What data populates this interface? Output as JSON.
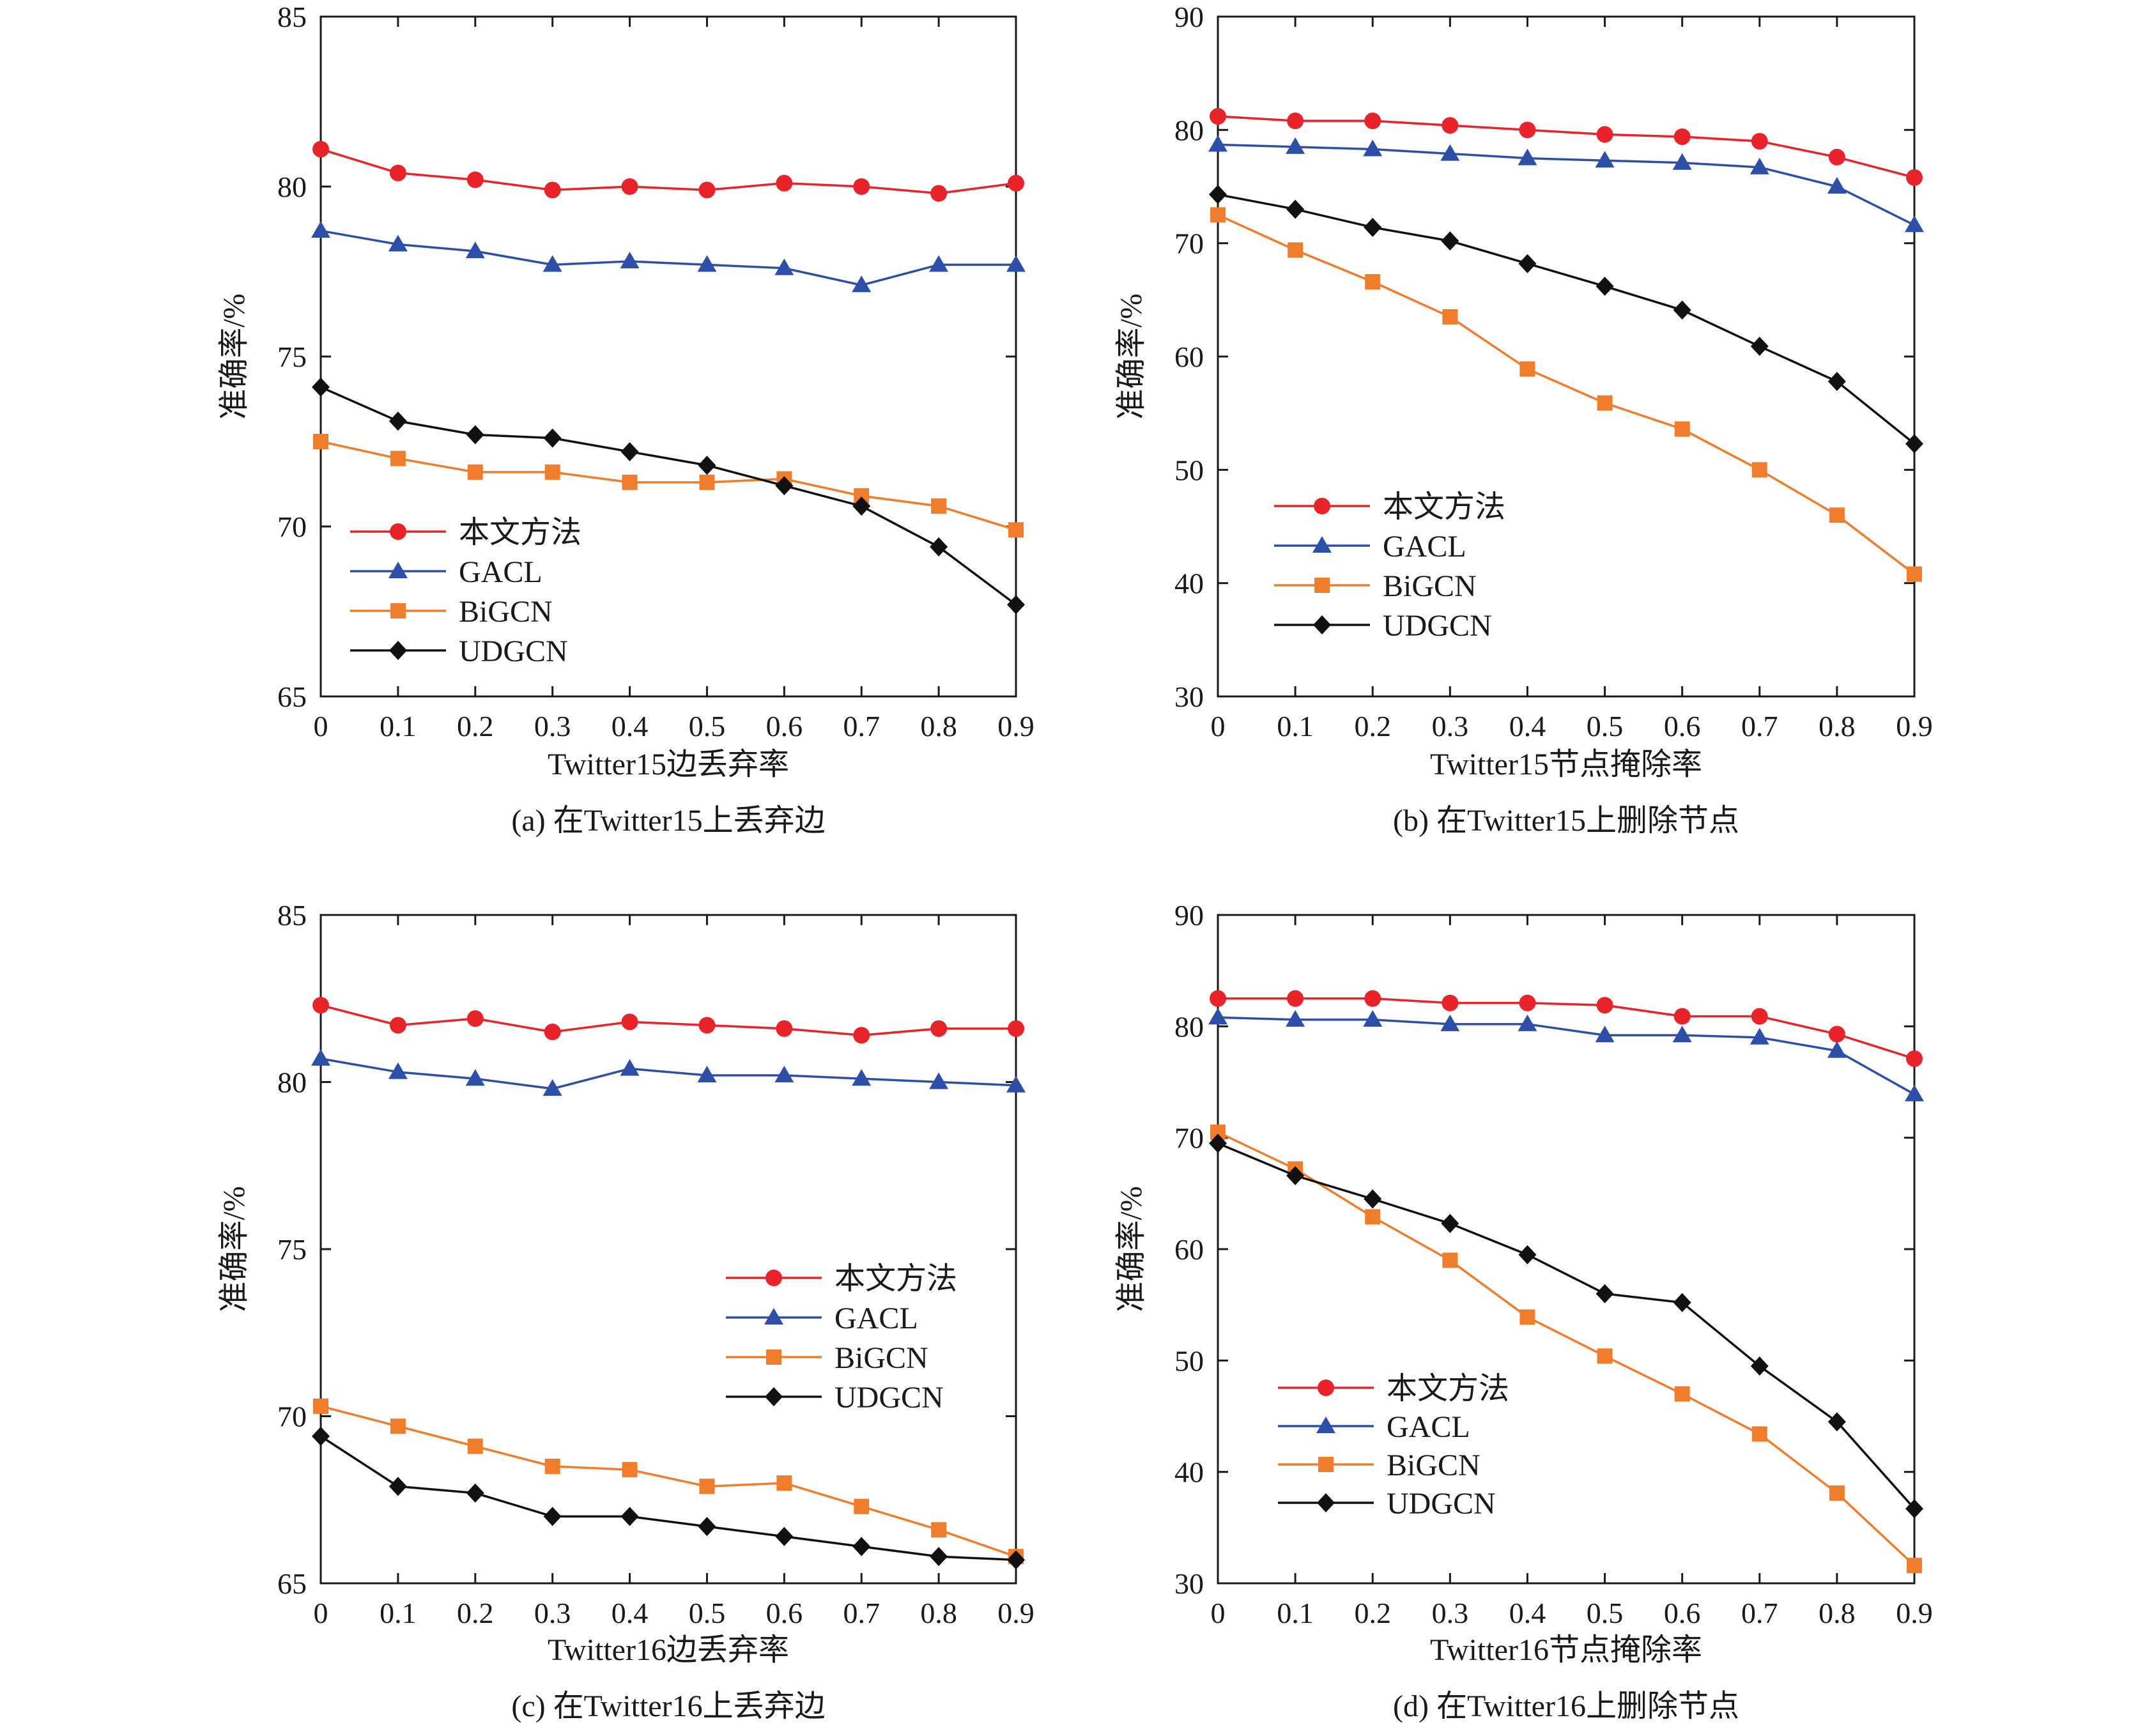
{
  "chart_data": [
    {
      "type": "line",
      "caption": "(a)  在Twitter15上丢弃边",
      "xlabel": "Twitter15边丢弃率",
      "ylabel": "准确率/%",
      "x": [
        0,
        0.1,
        0.2,
        0.3,
        0.4,
        0.5,
        0.6,
        0.7,
        0.8,
        0.9
      ],
      "x_tick_labels": [
        "0",
        "0.1",
        "0.2",
        "0.3",
        "0.4",
        "0.5",
        "0.6",
        "0.7",
        "0.8",
        "0.9"
      ],
      "ylim": [
        65,
        85
      ],
      "yticks": [
        65,
        70,
        75,
        80,
        85
      ],
      "grid": false,
      "legend_position": "lower-left",
      "series": [
        {
          "name": "本文方法",
          "color": "#e8232a",
          "marker": "circle",
          "values": [
            81.1,
            80.4,
            80.2,
            79.9,
            80.0,
            79.9,
            80.1,
            80.0,
            79.8,
            80.1
          ]
        },
        {
          "name": "GACL",
          "color": "#2e4fa8",
          "marker": "triangle",
          "values": [
            78.7,
            78.3,
            78.1,
            77.7,
            77.8,
            77.7,
            77.6,
            77.1,
            77.7,
            77.7
          ]
        },
        {
          "name": "BiGCN",
          "color": "#f07d2b",
          "marker": "square",
          "values": [
            72.5,
            72.0,
            71.6,
            71.6,
            71.3,
            71.3,
            71.4,
            70.9,
            70.6,
            69.9
          ]
        },
        {
          "name": "UDGCN",
          "color": "#111111",
          "marker": "diamond",
          "values": [
            74.1,
            73.1,
            72.7,
            72.6,
            72.2,
            71.8,
            71.2,
            70.6,
            69.4,
            67.7
          ]
        }
      ]
    },
    {
      "type": "line",
      "caption": "(b)  在Twitter15上删除节点",
      "xlabel": "Twitter15节点掩除率",
      "ylabel": "准确率/%",
      "x": [
        0,
        0.1,
        0.2,
        0.3,
        0.4,
        0.5,
        0.6,
        0.7,
        0.8,
        0.9
      ],
      "x_tick_labels": [
        "0",
        "0.1",
        "0.2",
        "0.3",
        "0.4",
        "0.5",
        "0.6",
        "0.7",
        "0.8",
        "0.9"
      ],
      "ylim": [
        30,
        90
      ],
      "yticks": [
        30,
        40,
        50,
        60,
        70,
        80,
        90
      ],
      "grid": false,
      "legend_position": "lower-left",
      "series": [
        {
          "name": "本文方法",
          "color": "#e8232a",
          "marker": "circle",
          "values": [
            81.2,
            80.8,
            80.8,
            80.4,
            80.0,
            79.6,
            79.4,
            79.0,
            77.6,
            75.8
          ]
        },
        {
          "name": "GACL",
          "color": "#2e4fa8",
          "marker": "triangle",
          "values": [
            78.7,
            78.5,
            78.3,
            77.9,
            77.5,
            77.3,
            77.1,
            76.7,
            75.0,
            71.6
          ]
        },
        {
          "name": "BiGCN",
          "color": "#f07d2b",
          "marker": "square",
          "values": [
            72.5,
            69.4,
            66.6,
            63.5,
            58.9,
            55.9,
            53.6,
            50.0,
            46.0,
            40.8
          ]
        },
        {
          "name": "UDGCN",
          "color": "#111111",
          "marker": "diamond",
          "values": [
            74.3,
            73.0,
            71.4,
            70.2,
            68.2,
            66.2,
            64.1,
            60.9,
            57.8,
            52.3
          ]
        }
      ]
    },
    {
      "type": "line",
      "caption": "(c)  在Twitter16上丢弃边",
      "xlabel": "Twitter16边丢弃率",
      "ylabel": "准确率/%",
      "x": [
        0,
        0.1,
        0.2,
        0.3,
        0.4,
        0.5,
        0.6,
        0.7,
        0.8,
        0.9
      ],
      "x_tick_labels": [
        "0",
        "0.1",
        "0.2",
        "0.3",
        "0.4",
        "0.5",
        "0.6",
        "0.7",
        "0.8",
        "0.9"
      ],
      "ylim": [
        65,
        85
      ],
      "yticks": [
        65,
        70,
        75,
        80,
        85
      ],
      "grid": false,
      "legend_position": "center-right",
      "series": [
        {
          "name": "本文方法",
          "color": "#e8232a",
          "marker": "circle",
          "values": [
            82.3,
            81.7,
            81.9,
            81.5,
            81.8,
            81.7,
            81.6,
            81.4,
            81.6,
            81.6
          ]
        },
        {
          "name": "GACL",
          "color": "#2e4fa8",
          "marker": "triangle",
          "values": [
            80.7,
            80.3,
            80.1,
            79.8,
            80.4,
            80.2,
            80.2,
            80.1,
            80.0,
            79.9
          ]
        },
        {
          "name": "BiGCN",
          "color": "#f07d2b",
          "marker": "square",
          "values": [
            70.3,
            69.7,
            69.1,
            68.5,
            68.4,
            67.9,
            68.0,
            67.3,
            66.6,
            65.8
          ]
        },
        {
          "name": "UDGCN",
          "color": "#111111",
          "marker": "diamond",
          "values": [
            69.4,
            67.9,
            67.7,
            67.0,
            67.0,
            66.7,
            66.4,
            66.1,
            65.8,
            65.7
          ]
        }
      ]
    },
    {
      "type": "line",
      "caption": "(d)  在Twitter16上删除节点",
      "xlabel": "Twitter16节点掩除率",
      "ylabel": "准确率/%",
      "x": [
        0,
        0.1,
        0.2,
        0.3,
        0.4,
        0.5,
        0.6,
        0.7,
        0.8,
        0.9
      ],
      "x_tick_labels": [
        "0",
        "0.1",
        "0.2",
        "0.3",
        "0.4",
        "0.5",
        "0.6",
        "0.7",
        "0.8",
        "0.9"
      ],
      "ylim": [
        30,
        90
      ],
      "yticks": [
        30,
        40,
        50,
        60,
        70,
        80,
        90
      ],
      "grid": false,
      "legend_position": "lower-left",
      "series": [
        {
          "name": "本文方法",
          "color": "#e8232a",
          "marker": "circle",
          "values": [
            82.5,
            82.5,
            82.5,
            82.1,
            82.1,
            81.9,
            80.9,
            80.9,
            79.3,
            77.1
          ]
        },
        {
          "name": "GACL",
          "color": "#2e4fa8",
          "marker": "triangle",
          "values": [
            80.8,
            80.6,
            80.6,
            80.2,
            80.2,
            79.2,
            79.2,
            79.0,
            77.8,
            73.9
          ]
        },
        {
          "name": "BiGCN",
          "color": "#f07d2b",
          "marker": "square",
          "values": [
            70.5,
            67.2,
            62.9,
            59.0,
            53.9,
            50.4,
            47.0,
            43.4,
            38.1,
            31.6
          ]
        },
        {
          "name": "UDGCN",
          "color": "#111111",
          "marker": "diamond",
          "values": [
            69.5,
            66.6,
            64.5,
            62.3,
            59.5,
            56.0,
            55.2,
            49.5,
            44.5,
            36.7
          ]
        }
      ]
    }
  ]
}
